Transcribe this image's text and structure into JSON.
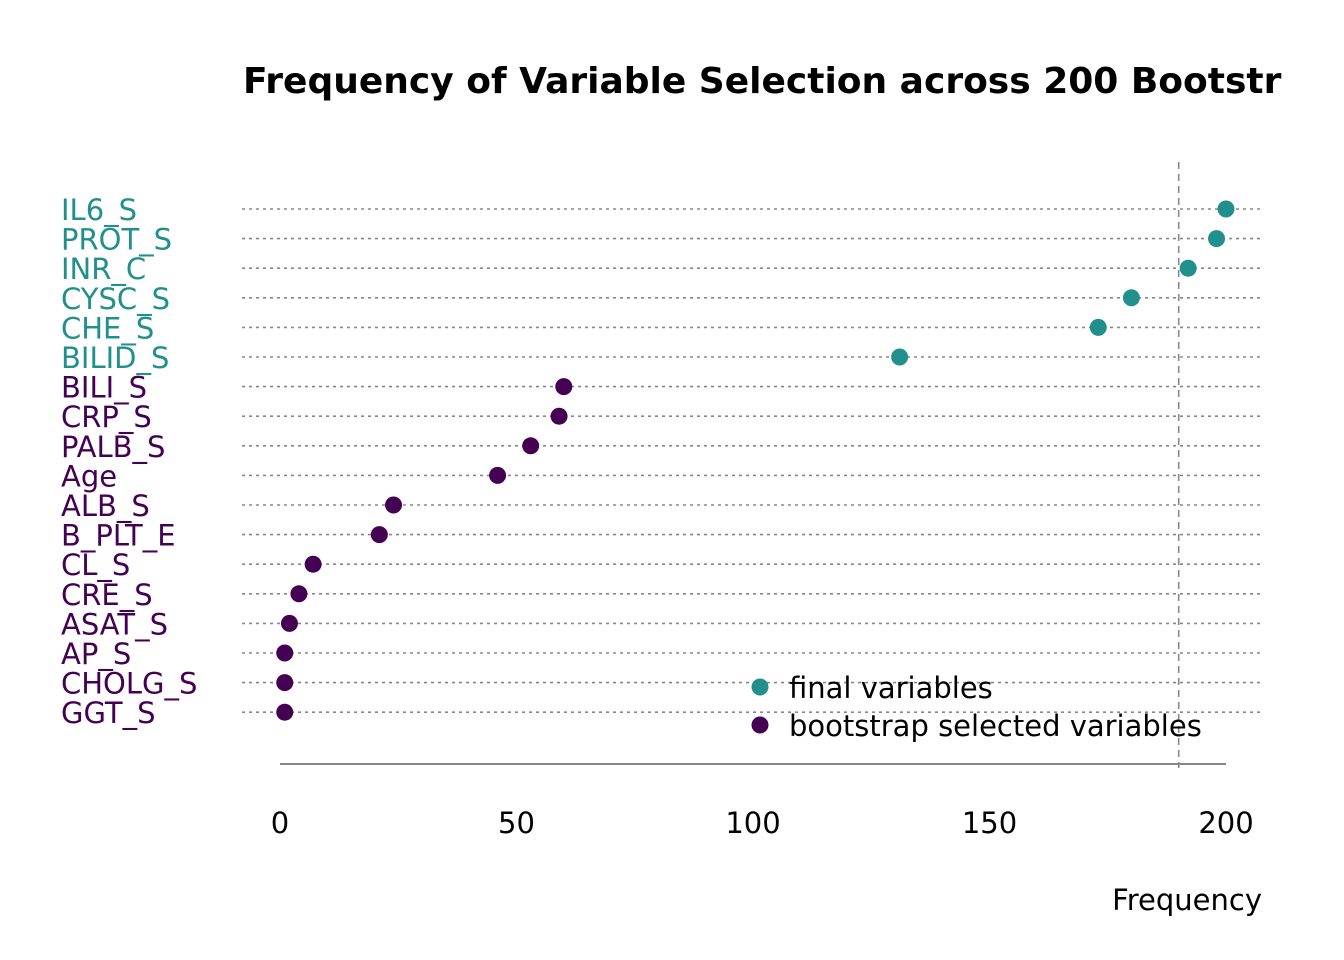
{
  "chart_data": {
    "type": "scatter",
    "title": "Frequency of Variable Selection across 200 Bootstr",
    "xlabel": "Frequency",
    "ylabel": "",
    "xlim": [
      0,
      200
    ],
    "x_ticks": [
      "0",
      "50",
      "100",
      "150",
      "200"
    ],
    "reference_line_x": 190,
    "grid": "dotted horizontal lines per category",
    "legend_position": "bottom-right",
    "colors": {
      "final": "#21908C",
      "bootstrap": "#440154",
      "grid": "#888888",
      "axis": "#888888"
    },
    "categories": [
      "IL6_S",
      "PROT_S",
      "INR_C",
      "CYSC_S",
      "CHE_S",
      "BILID_S",
      "BILI_S",
      "CRP_S",
      "PALB_S",
      "Age",
      "ALB_S",
      "B_PLT_E",
      "CL_S",
      "CRE_S",
      "ASAT_S",
      "AP_S",
      "CHOLG_S",
      "GGT_S"
    ],
    "values": [
      200,
      198,
      192,
      180,
      173,
      131,
      60,
      59,
      53,
      46,
      24,
      21,
      7,
      4,
      2,
      1,
      1,
      1
    ],
    "groups": [
      "final",
      "final",
      "final",
      "final",
      "final",
      "final",
      "bootstrap",
      "bootstrap",
      "bootstrap",
      "bootstrap",
      "bootstrap",
      "bootstrap",
      "bootstrap",
      "bootstrap",
      "bootstrap",
      "bootstrap",
      "bootstrap",
      "bootstrap"
    ],
    "legend": [
      {
        "key": "final",
        "label": "final variables"
      },
      {
        "key": "bootstrap",
        "label": "bootstrap selected variables"
      }
    ]
  }
}
